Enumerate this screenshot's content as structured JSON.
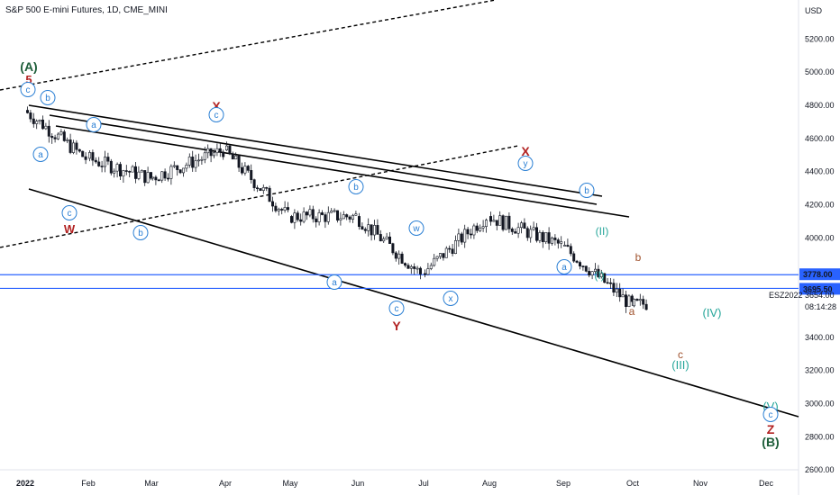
{
  "header": {
    "symbol_line": "S&P 500 E-mini Futures, 1D, CME_MINI"
  },
  "colors": {
    "candle": "#131722",
    "hline": "#2962ff",
    "wave_blue": "#2a7fd4",
    "wave_red": "#b22222",
    "wave_green": "#1e5e3a",
    "wave_teal": "#26a69a",
    "wave_brown": "#a0522d"
  },
  "chart_data": {
    "type": "candlestick",
    "title": "",
    "ylabel": "USD",
    "ylim": [
      2500,
      5800
    ],
    "y_ticks": [
      "5200.00",
      "5000.00",
      "4800.00",
      "4600.00",
      "4400.00",
      "4200.00",
      "4000.00",
      "3400.00",
      "3200.00",
      "3000.00",
      "2800.00",
      "2600.00"
    ],
    "x_ticks": [
      "2022",
      "Feb",
      "Mar",
      "Apr",
      "May",
      "Jun",
      "Jul",
      "Aug",
      "Sep",
      "Oct",
      "Nov",
      "Dec"
    ],
    "price_levels": [
      {
        "label": "3778.00",
        "value": 3778.0
      },
      {
        "label": "3695.50",
        "value": 3695.5
      }
    ],
    "last_price": {
      "symbol": "ESZ2022",
      "value": "3654.00",
      "countdown": "08:14:28"
    },
    "monthly_close_path": [
      {
        "date": "Jan",
        "open": 4770,
        "close": 4480
      },
      {
        "date": "Feb",
        "open": 4480,
        "close": 4360
      },
      {
        "date": "Mar",
        "open": 4360,
        "close": 4530
      },
      {
        "date": "Apr",
        "open": 4530,
        "close": 4130
      },
      {
        "date": "May",
        "open": 4130,
        "close": 4130
      },
      {
        "date": "Jun",
        "open": 4130,
        "close": 3785
      },
      {
        "date": "Jul",
        "open": 3785,
        "close": 4130
      },
      {
        "date": "Aug",
        "open": 4130,
        "close": 3955
      },
      {
        "date": "Sep",
        "open": 3955,
        "close": 3590
      },
      {
        "date": "Oct",
        "open": 3590,
        "close": 3654
      }
    ],
    "wave_labels": [
      "(A)",
      "5",
      "c",
      "b",
      "a",
      "c",
      "W",
      "b",
      "X",
      "c",
      "a",
      "b",
      "c",
      "Y",
      "w",
      "a",
      "x",
      "X",
      "y",
      "b",
      "(II)",
      "a",
      "(I)",
      "b",
      "a",
      "(IV)",
      "c",
      "(III)",
      "(V)",
      "c",
      "Z",
      "(B)"
    ]
  }
}
